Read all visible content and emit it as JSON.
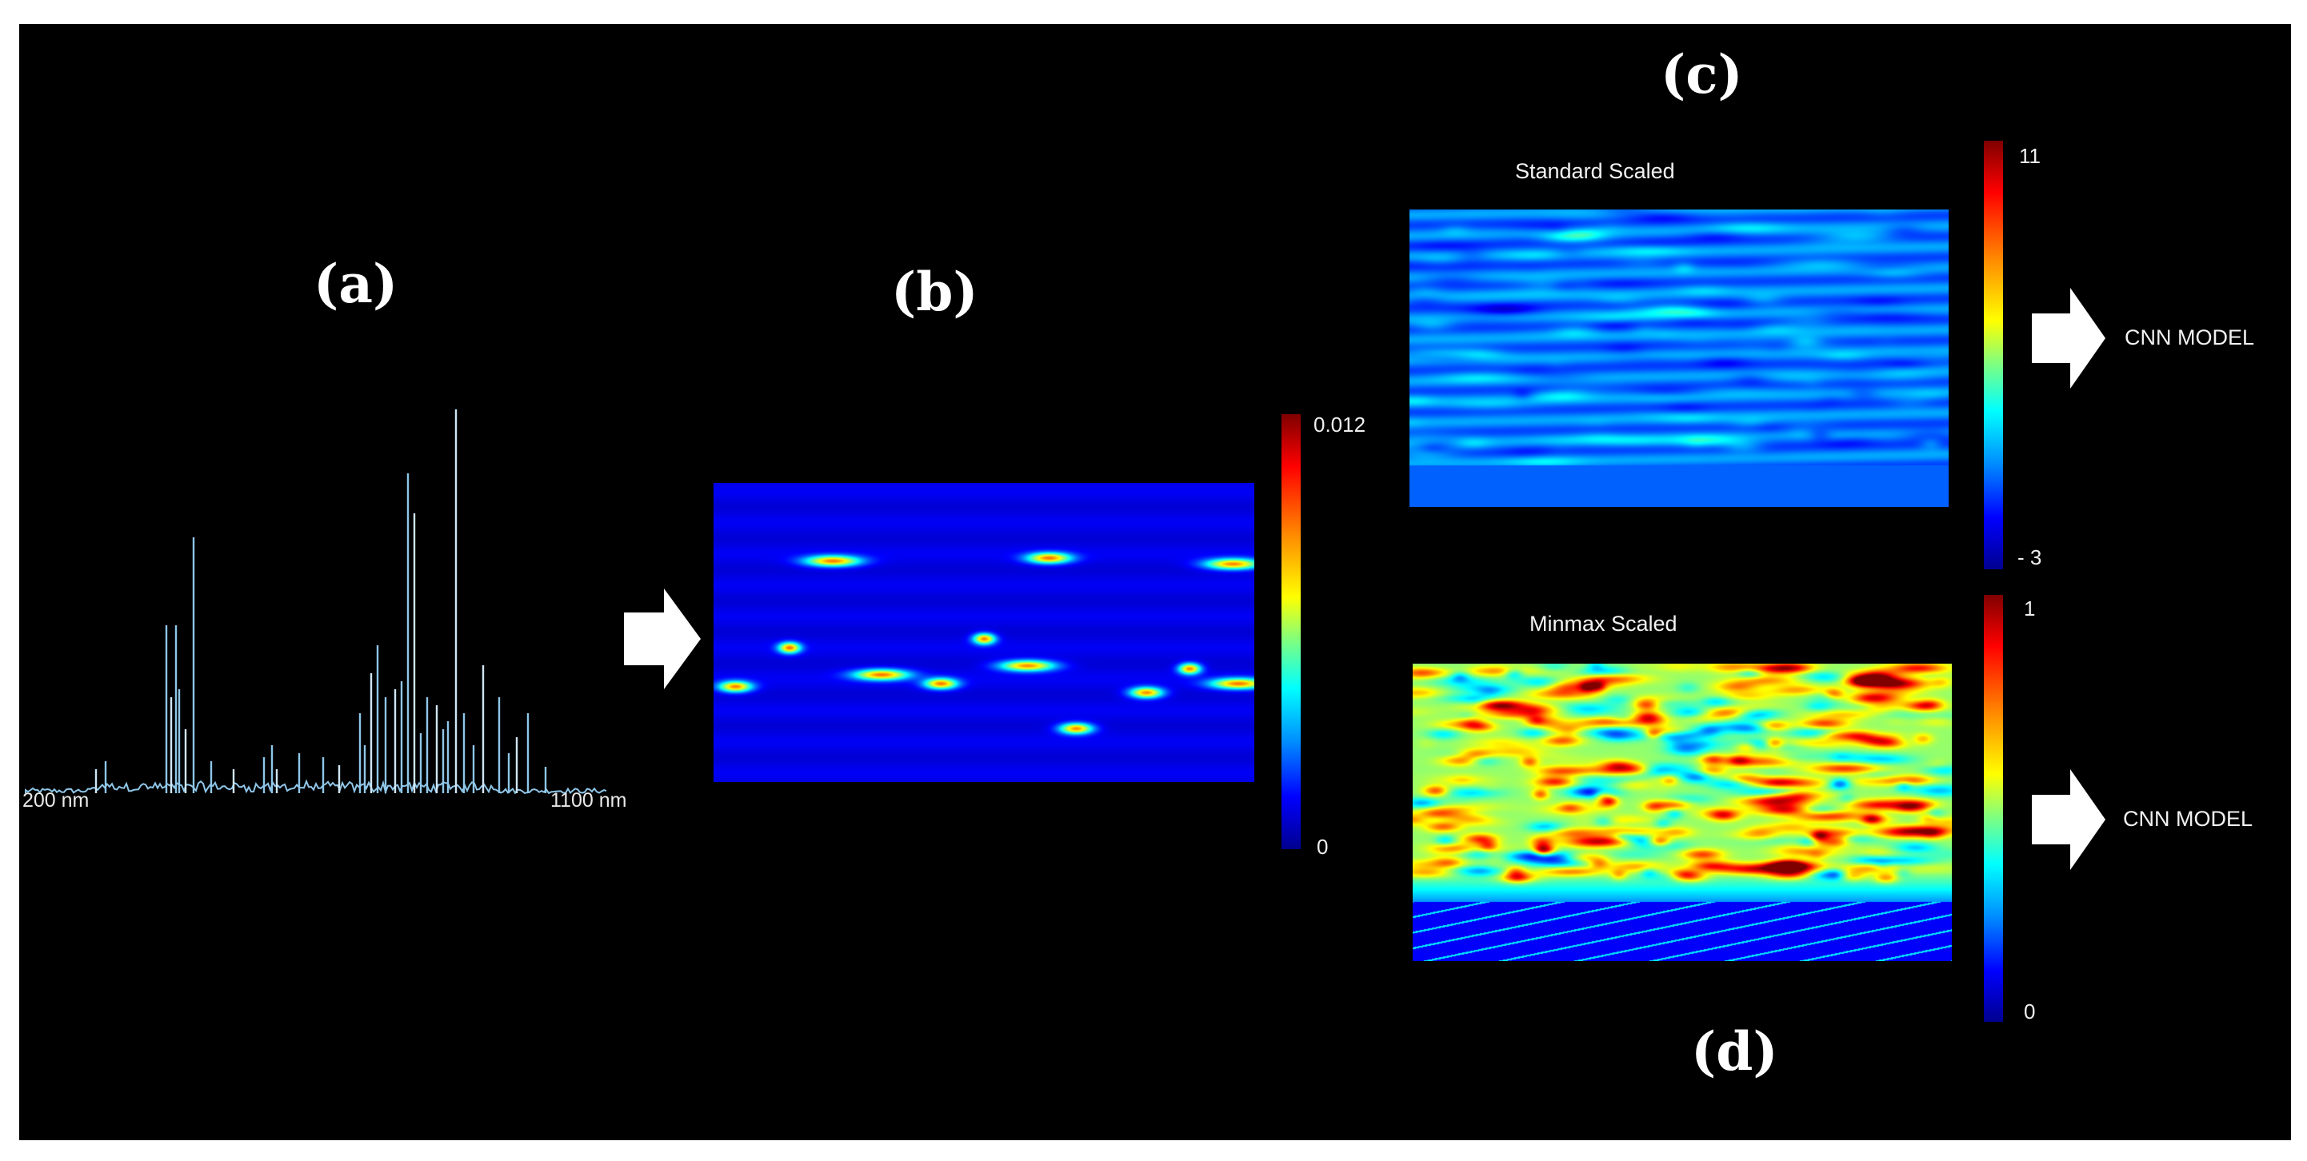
{
  "panels": {
    "a": {
      "label": "(a)",
      "axis_start": "200 nm",
      "axis_end": "1100 nm",
      "line_color": "#8fc6e8"
    },
    "b": {
      "label": "(b)",
      "colorbar_max": "0.012",
      "colorbar_min": "0"
    },
    "c": {
      "label": "(c)",
      "title": "Standard Scaled",
      "colorbar_max": "11",
      "colorbar_min": "- 3",
      "output": "CNN MODEL"
    },
    "d": {
      "label": "(d)",
      "title": "Minmax Scaled",
      "colorbar_max": "1",
      "colorbar_min": "0",
      "output": "CNN MODEL"
    }
  },
  "colors": {
    "background": "#000000",
    "arrow": "#ffffff",
    "colormap": "jet"
  }
}
